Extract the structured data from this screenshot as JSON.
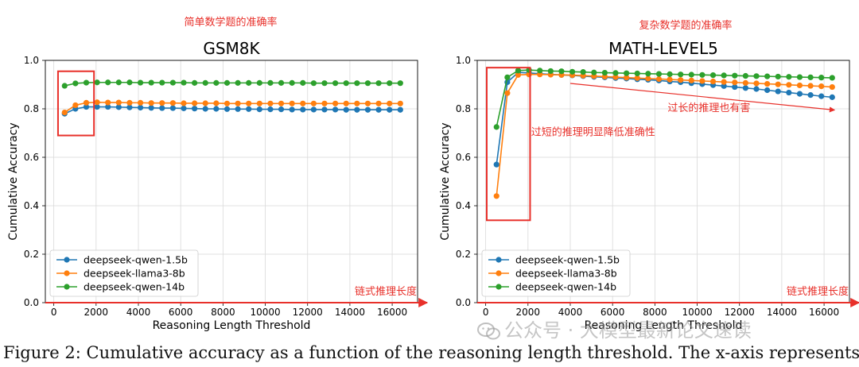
{
  "chart_data": [
    {
      "type": "line",
      "title": "GSM8K",
      "subtitle_annotation": "简单数学题的准确率",
      "xlabel": "Reasoning Length Threshold",
      "ylabel": "Cumulative Accuracy",
      "xlim": [
        -400,
        17200
      ],
      "ylim": [
        0.0,
        1.0
      ],
      "xticks": [
        0,
        2000,
        4000,
        6000,
        8000,
        10000,
        12000,
        14000,
        16000
      ],
      "yticks": [
        0.0,
        0.2,
        0.4,
        0.6,
        0.8,
        1.0
      ],
      "grid": true,
      "legend_position": "lower-left",
      "x": [
        512,
        1024,
        1536,
        2048,
        2560,
        3072,
        3584,
        4096,
        4608,
        5120,
        5632,
        6144,
        6656,
        7168,
        7680,
        8192,
        8704,
        9216,
        9728,
        10240,
        10752,
        11264,
        11776,
        12288,
        12800,
        13312,
        13824,
        14336,
        14848,
        15360,
        15872,
        16384
      ],
      "series": [
        {
          "name": "deepseek-qwen-1.5b",
          "color": "#1f77b4",
          "values": [
            0.78,
            0.8,
            0.808,
            0.808,
            0.808,
            0.807,
            0.806,
            0.805,
            0.804,
            0.803,
            0.803,
            0.802,
            0.801,
            0.8,
            0.8,
            0.799,
            0.799,
            0.799,
            0.798,
            0.798,
            0.798,
            0.797,
            0.797,
            0.797,
            0.797,
            0.797,
            0.796,
            0.796,
            0.796,
            0.796,
            0.796,
            0.796
          ]
        },
        {
          "name": "deepseek-llama3-8b",
          "color": "#ff7f0e",
          "values": [
            0.785,
            0.815,
            0.825,
            0.827,
            0.826,
            0.826,
            0.825,
            0.825,
            0.824,
            0.824,
            0.824,
            0.823,
            0.823,
            0.823,
            0.823,
            0.822,
            0.822,
            0.822,
            0.822,
            0.822,
            0.822,
            0.822,
            0.822,
            0.822,
            0.822,
            0.822,
            0.822,
            0.822,
            0.822,
            0.822,
            0.822,
            0.822
          ]
        },
        {
          "name": "deepseek-qwen-14b",
          "color": "#2ca02c",
          "values": [
            0.895,
            0.905,
            0.908,
            0.909,
            0.909,
            0.909,
            0.909,
            0.908,
            0.908,
            0.908,
            0.908,
            0.908,
            0.907,
            0.907,
            0.907,
            0.907,
            0.907,
            0.907,
            0.907,
            0.907,
            0.907,
            0.907,
            0.907,
            0.906,
            0.906,
            0.906,
            0.906,
            0.906,
            0.906,
            0.906,
            0.906,
            0.906
          ]
        }
      ],
      "annotations": [
        {
          "text": "链式推理长度",
          "kind": "x-arrow"
        },
        {
          "kind": "highlight-box",
          "x_range": [
            200,
            1900
          ],
          "y_range": [
            0.69,
            0.955
          ]
        }
      ]
    },
    {
      "type": "line",
      "title": "MATH-LEVEL5",
      "subtitle_annotation": "复杂数学题的准确率",
      "xlabel": "Reasoning Length Threshold",
      "ylabel": "Cumulative Accuracy",
      "xlim": [
        -400,
        17200
      ],
      "ylim": [
        0.0,
        1.0
      ],
      "xticks": [
        0,
        2000,
        4000,
        6000,
        8000,
        10000,
        12000,
        14000,
        16000
      ],
      "yticks": [
        0.0,
        0.2,
        0.4,
        0.6,
        0.8,
        1.0
      ],
      "grid": true,
      "legend_position": "lower-left",
      "x": [
        512,
        1024,
        1536,
        2048,
        2560,
        3072,
        3584,
        4096,
        4608,
        5120,
        5632,
        6144,
        6656,
        7168,
        7680,
        8192,
        8704,
        9216,
        9728,
        10240,
        10752,
        11264,
        11776,
        12288,
        12800,
        13312,
        13824,
        14336,
        14848,
        15360,
        15872,
        16384
      ],
      "series": [
        {
          "name": "deepseek-qwen-1.5b",
          "color": "#1f77b4",
          "values": [
            0.57,
            0.91,
            0.95,
            0.948,
            0.945,
            0.942,
            0.94,
            0.938,
            0.935,
            0.932,
            0.93,
            0.927,
            0.925,
            0.922,
            0.92,
            0.917,
            0.913,
            0.91,
            0.906,
            0.902,
            0.898,
            0.894,
            0.89,
            0.886,
            0.882,
            0.877,
            0.872,
            0.867,
            0.862,
            0.857,
            0.852,
            0.848
          ]
        },
        {
          "name": "deepseek-llama3-8b",
          "color": "#ff7f0e",
          "values": [
            0.44,
            0.865,
            0.94,
            0.942,
            0.942,
            0.941,
            0.94,
            0.939,
            0.937,
            0.935,
            0.933,
            0.931,
            0.929,
            0.927,
            0.925,
            0.923,
            0.921,
            0.919,
            0.917,
            0.915,
            0.913,
            0.911,
            0.909,
            0.907,
            0.905,
            0.903,
            0.901,
            0.899,
            0.897,
            0.895,
            0.893,
            0.89
          ]
        },
        {
          "name": "deepseek-qwen-14b",
          "color": "#2ca02c",
          "values": [
            0.725,
            0.93,
            0.958,
            0.96,
            0.958,
            0.956,
            0.955,
            0.953,
            0.952,
            0.95,
            0.949,
            0.948,
            0.947,
            0.946,
            0.945,
            0.944,
            0.943,
            0.942,
            0.941,
            0.94,
            0.939,
            0.938,
            0.937,
            0.936,
            0.935,
            0.934,
            0.933,
            0.932,
            0.931,
            0.93,
            0.929,
            0.928
          ]
        }
      ],
      "annotations": [
        {
          "text": "过短的推理明显降低准确性",
          "kind": "box-label"
        },
        {
          "text": "过长的推理也有害",
          "kind": "trend-arrow"
        },
        {
          "text": "链式推理长度",
          "kind": "x-arrow"
        },
        {
          "kind": "highlight-box",
          "x_range": [
            50,
            2100
          ],
          "y_range": [
            0.34,
            0.97
          ]
        },
        {
          "kind": "trend-arrow-line",
          "from": [
            4000,
            0.905
          ],
          "to": [
            16500,
            0.795
          ]
        }
      ]
    }
  ],
  "caption": "Figure 2: Cumulative accuracy as a function of the reasoning length threshold. The x-axis represents",
  "watermark": "公众号 · 大模型最新论文速读",
  "colors": {
    "accent_red": "#e8302a",
    "grid": "#d9d9d9"
  }
}
